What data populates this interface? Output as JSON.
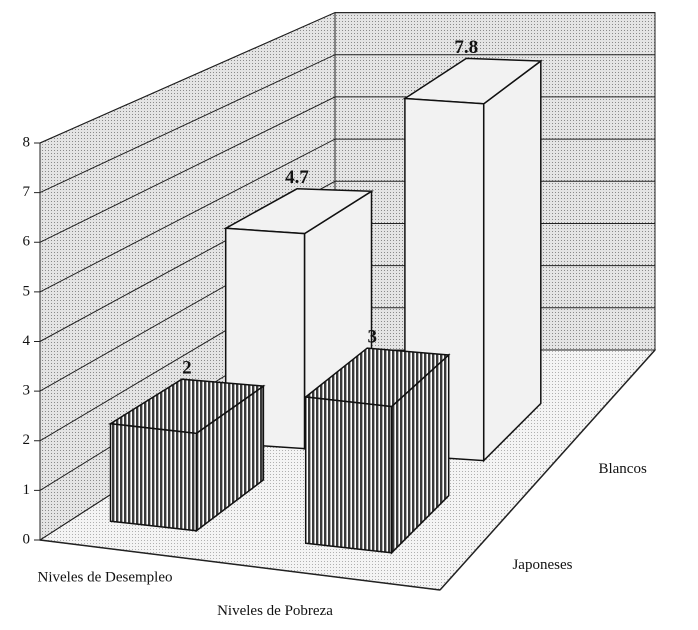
{
  "chart_data": {
    "type": "bar3d",
    "categories": [
      "Niveles de Desempleo",
      "Niveles de Pobreza"
    ],
    "series": [
      {
        "name": "Japoneses",
        "color": "#3a3a3a",
        "values": [
          2,
          3
        ]
      },
      {
        "name": "Blancos",
        "color": "#f2f2f2",
        "values": [
          4.7,
          7.8
        ]
      }
    ],
    "ylim": [
      0,
      8
    ],
    "yticks": [
      0,
      1,
      2,
      3,
      4,
      5,
      6,
      7,
      8
    ],
    "grid": true
  }
}
